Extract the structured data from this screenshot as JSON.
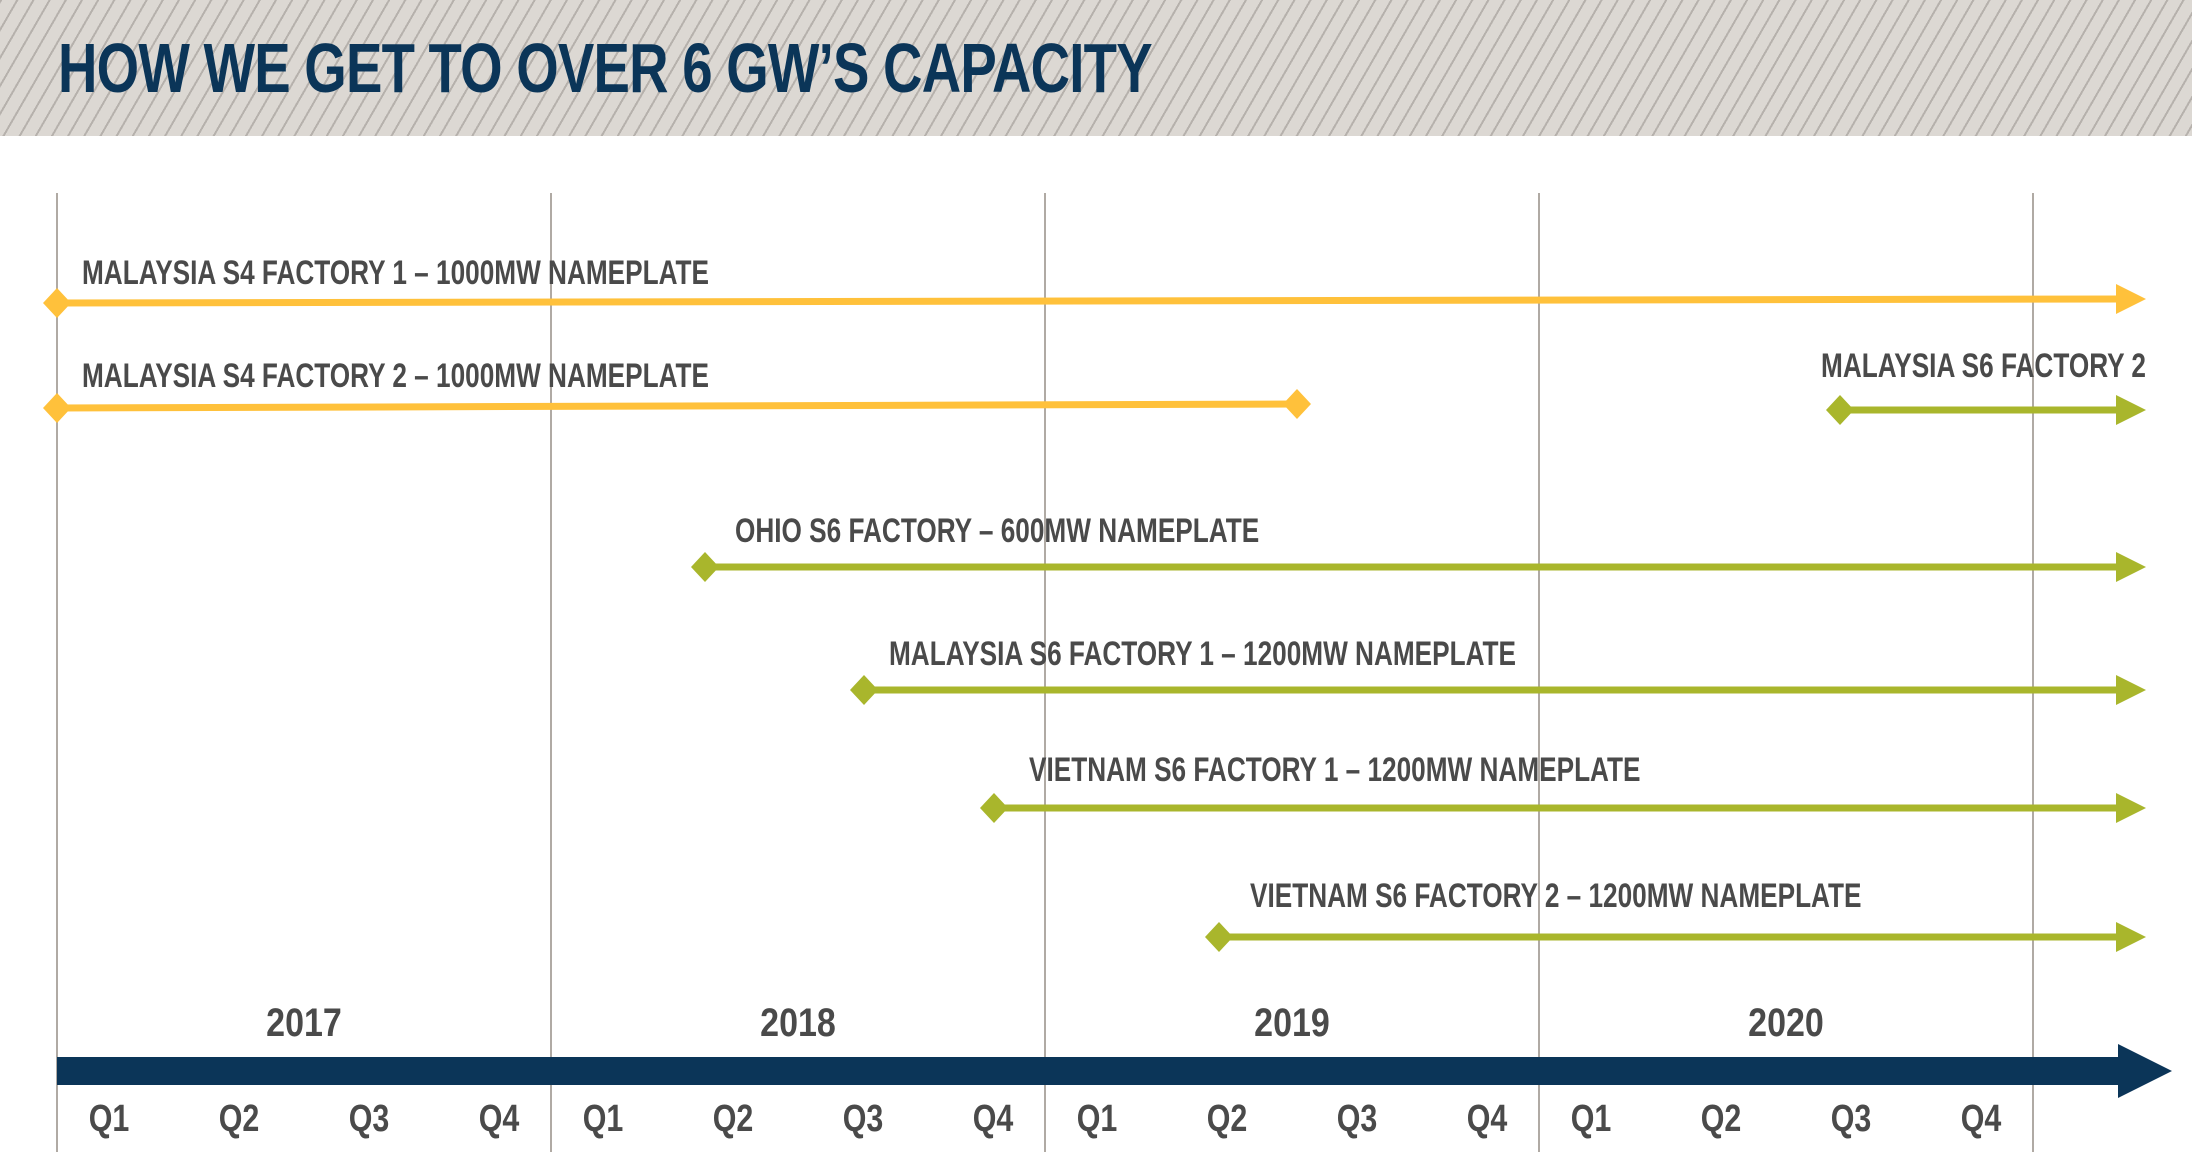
{
  "title": "HOW WE GET TO OVER 6 GW’S CAPACITY",
  "colors": {
    "s4": "#ffc13b",
    "s6": "#a9b62c",
    "axis": "#0b3558",
    "text": "#4a4a4a",
    "header_bg": "#dcd8d3"
  },
  "timeline": {
    "years": [
      "2017",
      "2018",
      "2019",
      "2020"
    ],
    "quarters": [
      "Q1",
      "Q2",
      "Q3",
      "Q4"
    ]
  },
  "factories": [
    {
      "label": "MALAYSIA S4 FACTORY 1 – 1000MW NAMEPLATE",
      "type": "s4",
      "start": "2017 Q1",
      "end": "ongoing"
    },
    {
      "label": "MALAYSIA S4 FACTORY 2 – 1000MW NAMEPLATE",
      "type": "s4",
      "start": "2017 Q1",
      "end": "2019 Q3"
    },
    {
      "label": "MALAYSIA S6 FACTORY 2",
      "type": "s6",
      "start": "2020 Q3",
      "end": "ongoing"
    },
    {
      "label": "OHIO S6 FACTORY – 600MW NAMEPLATE",
      "type": "s6",
      "start": "2018 Q2",
      "end": "ongoing"
    },
    {
      "label": "MALAYSIA S6 FACTORY 1 – 1200MW NAMEPLATE",
      "type": "s6",
      "start": "2018 Q3",
      "end": "ongoing"
    },
    {
      "label": "VIETNAM S6 FACTORY 1 – 1200MW NAMEPLATE",
      "type": "s6",
      "start": "2018 Q4",
      "end": "ongoing"
    },
    {
      "label": "VIETNAM S6 FACTORY 2 – 1200MW NAMEPLATE",
      "type": "s6",
      "start": "2019 Q2",
      "end": "ongoing"
    }
  ]
}
